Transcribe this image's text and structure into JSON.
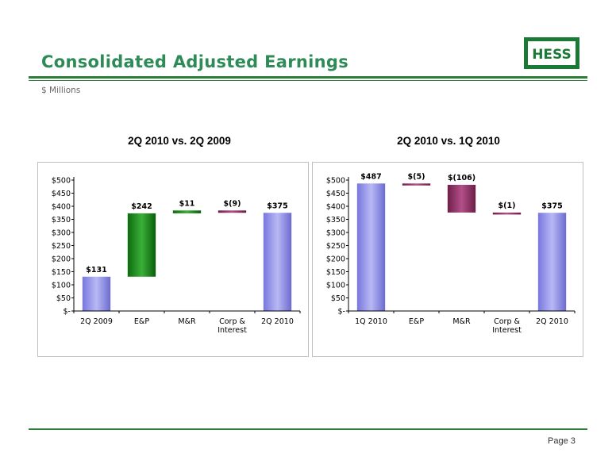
{
  "header": {
    "title": "Consolidated Adjusted Earnings",
    "subtitle": "$ Millions",
    "logo_text": "HESS"
  },
  "footer": {
    "page": "Page 3"
  },
  "colors": {
    "accent": "#2e8b57",
    "total_bar": "#9999ee",
    "increase_bar": "#1a8a1a",
    "decrease_bar": "#993366"
  },
  "chart_data": [
    {
      "type": "bar",
      "subtype": "waterfall",
      "title": "2Q 2010 vs. 2Q 2009",
      "categories": [
        "2Q 2009",
        "E&P",
        "M&R",
        "Corp & Interest",
        "2Q 2010"
      ],
      "category_lines": [
        [
          "2Q 2009"
        ],
        [
          "E&P"
        ],
        [
          "M&R"
        ],
        [
          "Corp &",
          "Interest"
        ],
        [
          "2Q 2010"
        ]
      ],
      "values": [
        131,
        242,
        11,
        -9,
        375
      ],
      "kinds": [
        "total",
        "delta",
        "delta",
        "delta",
        "total"
      ],
      "data_labels": [
        "$131",
        "$242",
        "$11",
        "$(9)",
        "$375"
      ],
      "yticks": [
        "$-",
        "$50",
        "$100",
        "$150",
        "$200",
        "$250",
        "$300",
        "$350",
        "$400",
        "$450",
        "$500"
      ],
      "ylim": [
        0,
        500
      ]
    },
    {
      "type": "bar",
      "subtype": "waterfall",
      "title": "2Q 2010 vs. 1Q 2010",
      "categories": [
        "1Q 2010",
        "E&P",
        "M&R",
        "Corp & Interest",
        "2Q 2010"
      ],
      "category_lines": [
        [
          "1Q 2010"
        ],
        [
          "E&P"
        ],
        [
          "M&R"
        ],
        [
          "Corp &",
          "Interest"
        ],
        [
          "2Q 2010"
        ]
      ],
      "values": [
        487,
        -5,
        -106,
        -1,
        375
      ],
      "kinds": [
        "total",
        "delta",
        "delta",
        "delta",
        "total"
      ],
      "data_labels": [
        "$487",
        "$(5)",
        "$(106)",
        "$(1)",
        "$375"
      ],
      "yticks": [
        "$-",
        "$50",
        "$100",
        "$150",
        "$200",
        "$250",
        "$300",
        "$350",
        "$400",
        "$450",
        "$500"
      ],
      "ylim": [
        0,
        500
      ]
    }
  ]
}
